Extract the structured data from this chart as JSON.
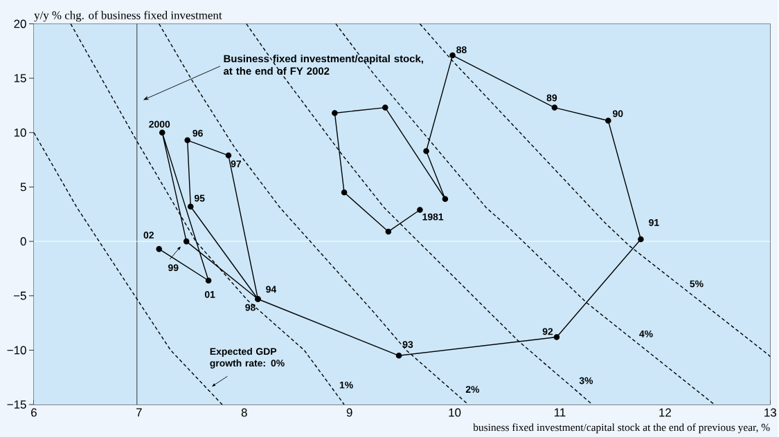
{
  "chart_data": {
    "type": "line",
    "xlabel": "business fixed investment/capital stock at the end of previous year, %",
    "ylabel": "y/y % chg. of business fixed investment",
    "xlim": [
      6,
      13
    ],
    "ylim": [
      -15,
      20
    ],
    "xticks": [
      6,
      7,
      8,
      9,
      10,
      11,
      12,
      13
    ],
    "yticks": [
      {
        "value": -15,
        "label": "−15"
      },
      {
        "value": -10,
        "label": "−10"
      },
      {
        "value": -5,
        "label": "−5"
      },
      0,
      5,
      10,
      15,
      20
    ],
    "ref_lines": [
      {
        "axis": "x",
        "value": 6.98,
        "color": "#333333"
      },
      {
        "axis": "y",
        "value": 0,
        "color": "#ffffff"
      }
    ],
    "series": [
      {
        "name": "Expected GDP growth rate: 0%",
        "color": "#000000",
        "line_style": "dashed",
        "marker": "none",
        "x": [
          6.0,
          6.41,
          6.98,
          7.3,
          7.79
        ],
        "values": [
          10.0,
          3.1,
          -5.3,
          -10.0,
          -15.0
        ]
      },
      {
        "name": "1%",
        "color": "#000000",
        "line_style": "dashed",
        "marker": "none",
        "x": [
          6.35,
          6.98,
          7.54,
          8.03,
          8.57,
          8.95
        ],
        "values": [
          20.0,
          9.2,
          0.0,
          -5.4,
          -10.0,
          -15.0
        ]
      },
      {
        "name": "2%",
        "color": "#000000",
        "line_style": "dashed",
        "marker": "none",
        "x": [
          7.19,
          7.51,
          7.91,
          8.34,
          9.23,
          9.54,
          10.13
        ],
        "values": [
          20.0,
          14.7,
          8.6,
          3.1,
          -6.5,
          -10.0,
          -15.0
        ]
      },
      {
        "name": "3%",
        "color": "#000000",
        "line_style": "dashed",
        "marker": "none",
        "x": [
          8.02,
          8.34,
          8.92,
          9.33,
          10.6,
          11.31
        ],
        "values": [
          20.0,
          15.6,
          8.1,
          3.1,
          -9.1,
          -15.0
        ]
      },
      {
        "name": "4%",
        "color": "#000000",
        "line_style": "dashed",
        "marker": "none",
        "x": [
          8.87,
          9.23,
          10.3,
          10.5,
          11.25,
          12.47
        ],
        "values": [
          20.0,
          15.4,
          3.1,
          1.4,
          -5.6,
          -15.0
        ]
      },
      {
        "name": "5%",
        "color": "#000000",
        "line_style": "dashed",
        "marker": "none",
        "x": [
          9.67,
          9.96,
          11.43,
          11.66,
          12.98,
          13.0
        ],
        "values": [
          20.0,
          16.8,
          1.7,
          -0.4,
          -10.4,
          -10.6
        ]
      },
      {
        "color": "#000000",
        "line_style": "solid",
        "marker": "circle",
        "x": [
          9.67,
          9.37,
          8.95,
          8.86,
          9.34,
          9.91,
          9.73,
          9.98,
          10.95,
          11.46,
          11.77,
          10.97,
          9.47,
          8.13,
          7.49,
          7.46,
          7.85,
          8.13,
          7.45,
          7.22,
          7.66,
          7.19
        ],
        "values": [
          2.9,
          0.9,
          4.5,
          11.8,
          12.3,
          3.9,
          8.3,
          17.1,
          12.3,
          11.1,
          0.2,
          -8.8,
          -10.5,
          -5.3,
          3.2,
          9.3,
          7.9,
          -5.3,
          0.0,
          10.0,
          -3.6,
          -0.7
        ]
      }
    ],
    "annotations": [
      "Business fixed investment/capital stock, at the end of FY 2002",
      {
        "text": "1981",
        "x": 9.67,
        "y": 2.9
      },
      {
        "text": "88",
        "x": 9.98,
        "y": 17.1
      },
      {
        "text": "89",
        "x": 10.95,
        "y": 12.3
      },
      {
        "text": "90",
        "x": 11.46,
        "y": 11.1
      },
      {
        "text": "91",
        "x": 11.77,
        "y": 0.2
      },
      {
        "text": "92",
        "x": 10.97,
        "y": -8.8
      },
      {
        "text": "93",
        "x": 9.47,
        "y": -10.5
      },
      {
        "text": "94",
        "x": 8.13,
        "y": -5.3
      },
      {
        "text": "95",
        "x": 7.49,
        "y": 3.2
      },
      {
        "text": "96",
        "x": 7.46,
        "y": 9.3
      },
      {
        "text": "97",
        "x": 7.85,
        "y": 7.9
      },
      {
        "text": "98",
        "x": 8.13,
        "y": -5.3
      },
      {
        "text": "99",
        "x": 7.45,
        "y": 0.0
      },
      {
        "text": "2000",
        "x": 7.22,
        "y": 10.0
      },
      {
        "text": "01",
        "x": 7.66,
        "y": -3.6
      },
      {
        "text": "02",
        "x": 7.19,
        "y": -0.7
      }
    ]
  }
}
